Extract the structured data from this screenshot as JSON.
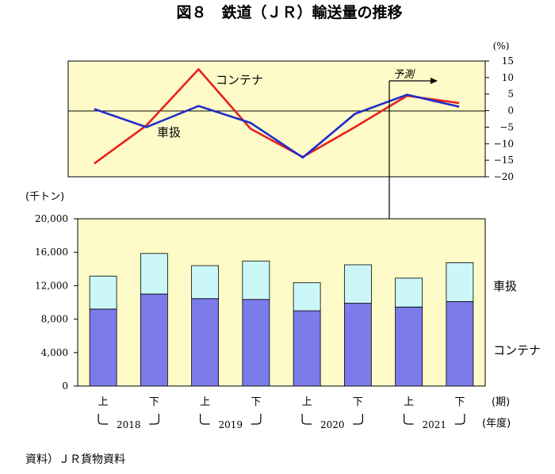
{
  "figure": {
    "title": "図８　鉄道（ＪＲ）輸送量の推移",
    "source": "資料）ＪＲ貨物資料",
    "colors": {
      "panel_bg": "#fffbc8",
      "container_bar": "#7b7bea",
      "sharyou_bar": "#cbf7f9",
      "container_line": "#e8201a",
      "sharyou_line": "#1f2ccc",
      "axis": "#000000"
    }
  },
  "chart_data": [
    {
      "type": "line",
      "title": "",
      "y_unit": "(%)",
      "ylim": [
        -20,
        15
      ],
      "yticks": [
        "15",
        "10",
        "5",
        "0",
        "−5",
        "−10",
        "−15",
        "−20"
      ],
      "categories": [
        "上",
        "下",
        "上",
        "下",
        "上",
        "下",
        "上",
        "下"
      ],
      "series": [
        {
          "name": "コンテナ",
          "values": [
            -16,
            -4.5,
            12.5,
            -5.5,
            -14,
            -5,
            4.5,
            2.3
          ]
        },
        {
          "name": "車扱",
          "values": [
            0.5,
            -5,
            1.4,
            -3.7,
            -14.2,
            -1,
            4.8,
            1.2
          ]
        }
      ],
      "forecast_label": "予測",
      "forecast_from_index": 6
    },
    {
      "type": "bar",
      "stacked": true,
      "title": "",
      "y_unit": "(千トン)",
      "ylim": [
        0,
        20000
      ],
      "yticks": [
        "0",
        "4,000",
        "8,000",
        "12,000",
        "16,000",
        "20,000"
      ],
      "categories": [
        "上",
        "下",
        "上",
        "下",
        "上",
        "下",
        "上",
        "下"
      ],
      "x_unit": "(期)",
      "year_unit": "(年度)",
      "years": [
        "2018",
        "2019",
        "2020",
        "2021"
      ],
      "series": [
        {
          "name": "コンテナ",
          "values": [
            9200,
            11000,
            10450,
            10350,
            9000,
            9900,
            9450,
            10100
          ]
        },
        {
          "name": "車扱",
          "values": [
            3950,
            4850,
            3950,
            4600,
            3350,
            4600,
            3450,
            4650
          ]
        }
      ]
    }
  ]
}
